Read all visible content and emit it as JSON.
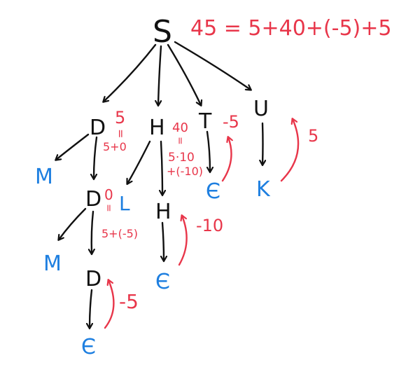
{
  "equation": "45 = 5+40+(-5)+5",
  "nodes": {
    "S": "S",
    "D1": "D",
    "H1": "H",
    "T": "T",
    "U": "U",
    "M1": "M",
    "D2": "D",
    "L": "L",
    "H2": "H",
    "eps_T": "Є",
    "K": "K",
    "M2": "M",
    "D3": "D",
    "eps_H": "Є",
    "eps_D": "Є"
  },
  "annotations": {
    "d1_top": "5",
    "d1_eq": "=",
    "d1_expr": "5+0",
    "h1_top": "40",
    "h1_eq": "=",
    "h1_expr1": "5·10",
    "h1_expr2": "+(-10)",
    "d2_top": "0",
    "d2_eq": "=",
    "d2_expr": "5+(-5)"
  },
  "arrow_labels": {
    "t_eps": "-5",
    "u_k": "5",
    "h_eps": "-10",
    "d_eps": "-5"
  },
  "colors": {
    "ink": "#111111",
    "terminal": "#1e7fe0",
    "annotation": "#e8364a"
  }
}
